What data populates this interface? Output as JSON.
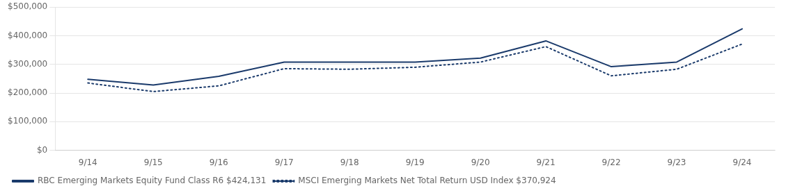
{
  "chart_data": {
    "type": "line",
    "categories": [
      "9/14",
      "9/15",
      "9/16",
      "9/17",
      "9/18",
      "9/19",
      "9/20",
      "9/21",
      "9/22",
      "9/23",
      "9/24"
    ],
    "series": [
      {
        "name": "RBC Emerging Markets Equity Fund Class R6 $424,131",
        "color": "#1a3a6b",
        "line_style": "solid",
        "values": [
          248000,
          228000,
          258000,
          308000,
          308000,
          308000,
          322000,
          382000,
          292000,
          308000,
          424131
        ]
      },
      {
        "name": "MSCI Emerging Markets Net Total Return USD Index $370,924",
        "color": "#1a3a6b",
        "line_style": "dotted",
        "values": [
          235000,
          205000,
          225000,
          285000,
          283000,
          290000,
          308000,
          362000,
          260000,
          283000,
          370924
        ]
      }
    ],
    "ylim": [
      0,
      500000
    ],
    "yticks": [
      {
        "value": 0,
        "label": "$0"
      },
      {
        "value": 100000,
        "label": "$100,000"
      },
      {
        "value": 200000,
        "label": "$200,000"
      },
      {
        "value": 300000,
        "label": "$300,000"
      },
      {
        "value": 400000,
        "label": "$400,000"
      },
      {
        "value": 500000,
        "label": "$500,000"
      }
    ],
    "grid": true,
    "legend": "lower left"
  }
}
